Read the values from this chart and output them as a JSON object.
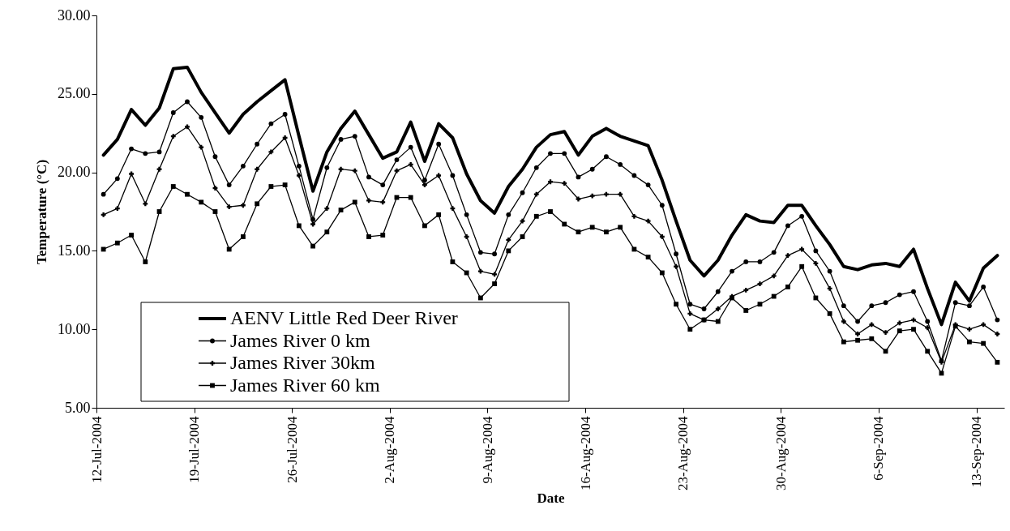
{
  "chart_data": {
    "type": "line",
    "xlabel": "Date",
    "ylabel": "Temperature (°C)",
    "x": [
      "2004-07-12T12:00",
      "2004-07-13T12:00",
      "2004-07-14T12:00",
      "2004-07-15T12:00",
      "2004-07-16T12:00",
      "2004-07-17T12:00",
      "2004-07-18T12:00",
      "2004-07-19T12:00",
      "2004-07-20T12:00",
      "2004-07-21T12:00",
      "2004-07-22T12:00",
      "2004-07-23T12:00",
      "2004-07-24T12:00",
      "2004-07-25T12:00",
      "2004-07-26T12:00",
      "2004-07-27T12:00",
      "2004-07-28T12:00",
      "2004-07-29T12:00",
      "2004-07-30T12:00",
      "2004-07-31T12:00",
      "2004-08-01T12:00",
      "2004-08-02T12:00",
      "2004-08-03T12:00",
      "2004-08-04T12:00",
      "2004-08-05T12:00",
      "2004-08-06T12:00",
      "2004-08-07T12:00",
      "2004-08-08T12:00",
      "2004-08-09T12:00",
      "2004-08-10T12:00",
      "2004-08-11T12:00",
      "2004-08-12T12:00",
      "2004-08-13T12:00",
      "2004-08-14T12:00",
      "2004-08-15T12:00",
      "2004-08-16T12:00",
      "2004-08-17T12:00",
      "2004-08-18T12:00",
      "2004-08-19T12:00",
      "2004-08-20T12:00",
      "2004-08-21T12:00",
      "2004-08-22T12:00",
      "2004-08-23T12:00",
      "2004-08-24T12:00",
      "2004-08-25T12:00",
      "2004-08-26T12:00",
      "2004-08-27T12:00",
      "2004-08-28T12:00",
      "2004-08-29T12:00",
      "2004-08-30T12:00",
      "2004-08-31T12:00",
      "2004-09-01T12:00",
      "2004-09-02T12:00",
      "2004-09-03T12:00",
      "2004-09-04T12:00",
      "2004-09-05T12:00",
      "2004-09-06T12:00",
      "2004-09-07T12:00",
      "2004-09-08T12:00",
      "2004-09-09T12:00",
      "2004-09-10T12:00",
      "2004-09-11T12:00",
      "2004-09-12T12:00",
      "2004-09-13T12:00",
      "2004-09-14T12:00"
    ],
    "series": [
      {
        "name": "AENV Little Red Deer River",
        "color": "#000000",
        "marker": "none",
        "values": [
          21.1,
          22.1,
          24.0,
          23.0,
          24.1,
          26.6,
          26.7,
          25.1,
          23.8,
          22.5,
          23.7,
          24.5,
          25.2,
          25.9,
          22.3,
          18.8,
          21.3,
          22.8,
          23.9,
          22.4,
          20.9,
          21.3,
          23.2,
          20.7,
          23.1,
          22.2,
          19.9,
          18.2,
          17.4,
          19.1,
          20.2,
          21.6,
          22.4,
          22.6,
          21.1,
          22.3,
          22.8,
          22.3,
          22.0,
          21.7,
          19.5,
          16.9,
          14.4,
          13.4,
          14.4,
          16.0,
          17.3,
          16.9,
          16.8,
          17.9,
          17.9,
          16.6,
          15.4,
          14.0,
          13.8,
          14.1,
          14.2,
          14.0,
          15.1,
          12.6,
          10.3,
          13.0,
          11.8,
          13.9,
          14.7
        ]
      },
      {
        "name": "James River 0 km",
        "color": "#000000",
        "marker": "circle",
        "values": [
          18.6,
          19.6,
          21.5,
          21.2,
          21.3,
          23.8,
          24.5,
          23.5,
          21.0,
          19.2,
          20.4,
          21.8,
          23.1,
          23.7,
          20.4,
          17.0,
          20.3,
          22.1,
          22.3,
          19.7,
          19.2,
          20.8,
          21.6,
          19.5,
          21.8,
          19.8,
          17.3,
          14.9,
          14.8,
          17.3,
          18.7,
          20.3,
          21.2,
          21.2,
          19.7,
          20.2,
          21.0,
          20.5,
          19.8,
          19.2,
          17.9,
          14.8,
          11.6,
          11.3,
          12.4,
          13.7,
          14.3,
          14.3,
          14.9,
          16.6,
          17.2,
          15.0,
          13.7,
          11.5,
          10.5,
          11.5,
          11.7,
          12.2,
          12.4,
          10.5,
          8.0,
          11.7,
          11.5,
          12.7,
          10.6
        ]
      },
      {
        "name": "James River 30km",
        "color": "#000000",
        "marker": "cross",
        "values": [
          17.3,
          17.7,
          19.9,
          18.0,
          20.2,
          22.3,
          22.9,
          21.6,
          19.0,
          17.8,
          17.9,
          20.2,
          21.3,
          22.2,
          19.8,
          16.7,
          17.7,
          20.2,
          20.1,
          18.2,
          18.1,
          20.1,
          20.5,
          19.2,
          19.8,
          17.7,
          15.9,
          13.7,
          13.5,
          15.7,
          16.9,
          18.6,
          19.4,
          19.3,
          18.3,
          18.5,
          18.6,
          18.6,
          17.2,
          16.9,
          15.9,
          14.0,
          11.0,
          10.6,
          11.3,
          12.1,
          12.5,
          12.9,
          13.4,
          14.7,
          15.1,
          14.2,
          12.6,
          10.5,
          9.7,
          10.3,
          9.8,
          10.4,
          10.6,
          10.1,
          7.9,
          10.3,
          10.0,
          10.3,
          9.7
        ]
      },
      {
        "name": "James River 60 km",
        "color": "#000000",
        "marker": "square",
        "values": [
          15.1,
          15.5,
          16.0,
          14.3,
          17.5,
          19.1,
          18.6,
          18.1,
          17.5,
          15.1,
          15.9,
          18.0,
          19.1,
          19.2,
          16.6,
          15.3,
          16.2,
          17.6,
          18.1,
          15.9,
          16.0,
          18.4,
          18.4,
          16.6,
          17.3,
          14.3,
          13.6,
          12.0,
          12.9,
          15.0,
          15.9,
          17.2,
          17.5,
          16.7,
          16.2,
          16.5,
          16.2,
          16.5,
          15.1,
          14.6,
          13.6,
          11.6,
          10.0,
          10.6,
          10.5,
          12.0,
          11.2,
          11.6,
          12.1,
          12.7,
          14.0,
          12.0,
          11.0,
          9.2,
          9.3,
          9.4,
          8.6,
          9.9,
          10.0,
          8.6,
          7.2,
          10.2,
          9.2,
          9.1,
          7.9
        ]
      }
    ],
    "xlim": [
      "2004-07-12",
      "2004-09-15"
    ],
    "xticks": [
      {
        "value": "2004-07-12",
        "label": "12-Jul-2004"
      },
      {
        "value": "2004-07-19",
        "label": "19-Jul-2004"
      },
      {
        "value": "2004-07-26",
        "label": "26-Jul-2004"
      },
      {
        "value": "2004-08-02",
        "label": "2-Aug-2004"
      },
      {
        "value": "2004-08-09",
        "label": "9-Aug-2004"
      },
      {
        "value": "2004-08-16",
        "label": "16-Aug-2004"
      },
      {
        "value": "2004-08-23",
        "label": "23-Aug-2004"
      },
      {
        "value": "2004-08-30",
        "label": "30-Aug-2004"
      },
      {
        "value": "2004-09-06",
        "label": "6-Sep-2004"
      },
      {
        "value": "2004-09-13",
        "label": "13-Sep-2004"
      }
    ],
    "ylim": [
      5,
      30
    ],
    "yticks": [
      {
        "value": 5,
        "label": "5.00"
      },
      {
        "value": 10,
        "label": "10.00"
      },
      {
        "value": 15,
        "label": "15.00"
      },
      {
        "value": 20,
        "label": "20.00"
      },
      {
        "value": 25,
        "label": "25.00"
      },
      {
        "value": 30,
        "label": "30.00"
      }
    ],
    "grid": false,
    "legend": "bottom left"
  }
}
